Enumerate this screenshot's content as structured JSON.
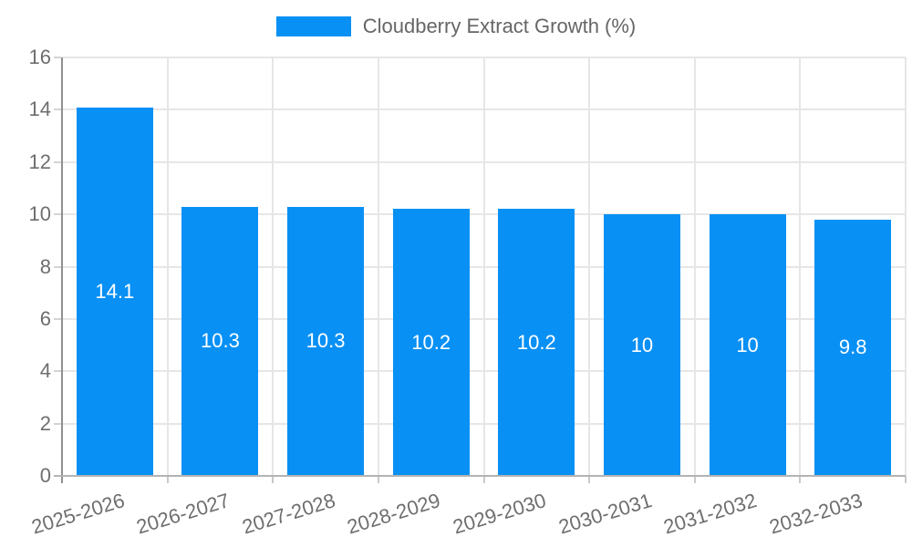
{
  "legend": {
    "label": "Cloudberry Extract Growth (%)"
  },
  "colors": {
    "bar": "#0890F5",
    "bar_label": "#FFFFFF",
    "grid": "#E6E6E6",
    "y_axis_line": "#8F8F8F",
    "x_axis_line": "#B3B3B3",
    "tick_mark": "#D4D4D4",
    "x_tick_mark": "#C9C9C9",
    "tick_label": "#6E6E6E",
    "legend_text": "#666666",
    "background": "#FFFFFF"
  },
  "chart_data": {
    "type": "bar",
    "title": "",
    "legend_entries": [
      "Cloudberry Extract Growth (%)"
    ],
    "legend_position": "top-center",
    "categories": [
      "2025-2026",
      "2026-2027",
      "2027-2028",
      "2028-2029",
      "2029-2030",
      "2030-2031",
      "2031-2032",
      "2032-2033"
    ],
    "values": [
      14.1,
      10.3,
      10.3,
      10.2,
      10.2,
      10,
      10,
      9.8
    ],
    "bar_value_labels": [
      "14.1",
      "10.3",
      "10.3",
      "10.2",
      "10.2",
      "10",
      "10",
      "9.8"
    ],
    "xlabel": "",
    "ylabel": "",
    "ylim": [
      0,
      16
    ],
    "yticks": [
      0,
      2,
      4,
      6,
      8,
      10,
      12,
      14,
      16
    ],
    "grid": true,
    "x_tick_rotation_deg": -17,
    "bar_labels_inside": true,
    "bar_label_vertical_position": "center"
  }
}
